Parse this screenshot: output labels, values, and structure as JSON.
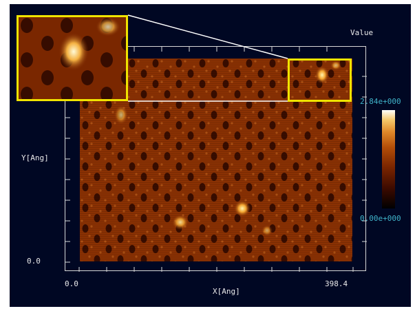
{
  "axes": {
    "x_label": "X[Ang]",
    "y_label": "Y[Ang]",
    "x_min": "0.0",
    "x_max": "398.4",
    "y_min": "0.0"
  },
  "colorbar": {
    "title": "Value",
    "max": "2.84e+000",
    "min": "0.00e+000",
    "colors": [
      "#000000",
      "#3b0a00",
      "#7a2500",
      "#b24d08",
      "#e0892a",
      "#f5c86b",
      "#ffffff"
    ]
  }
}
